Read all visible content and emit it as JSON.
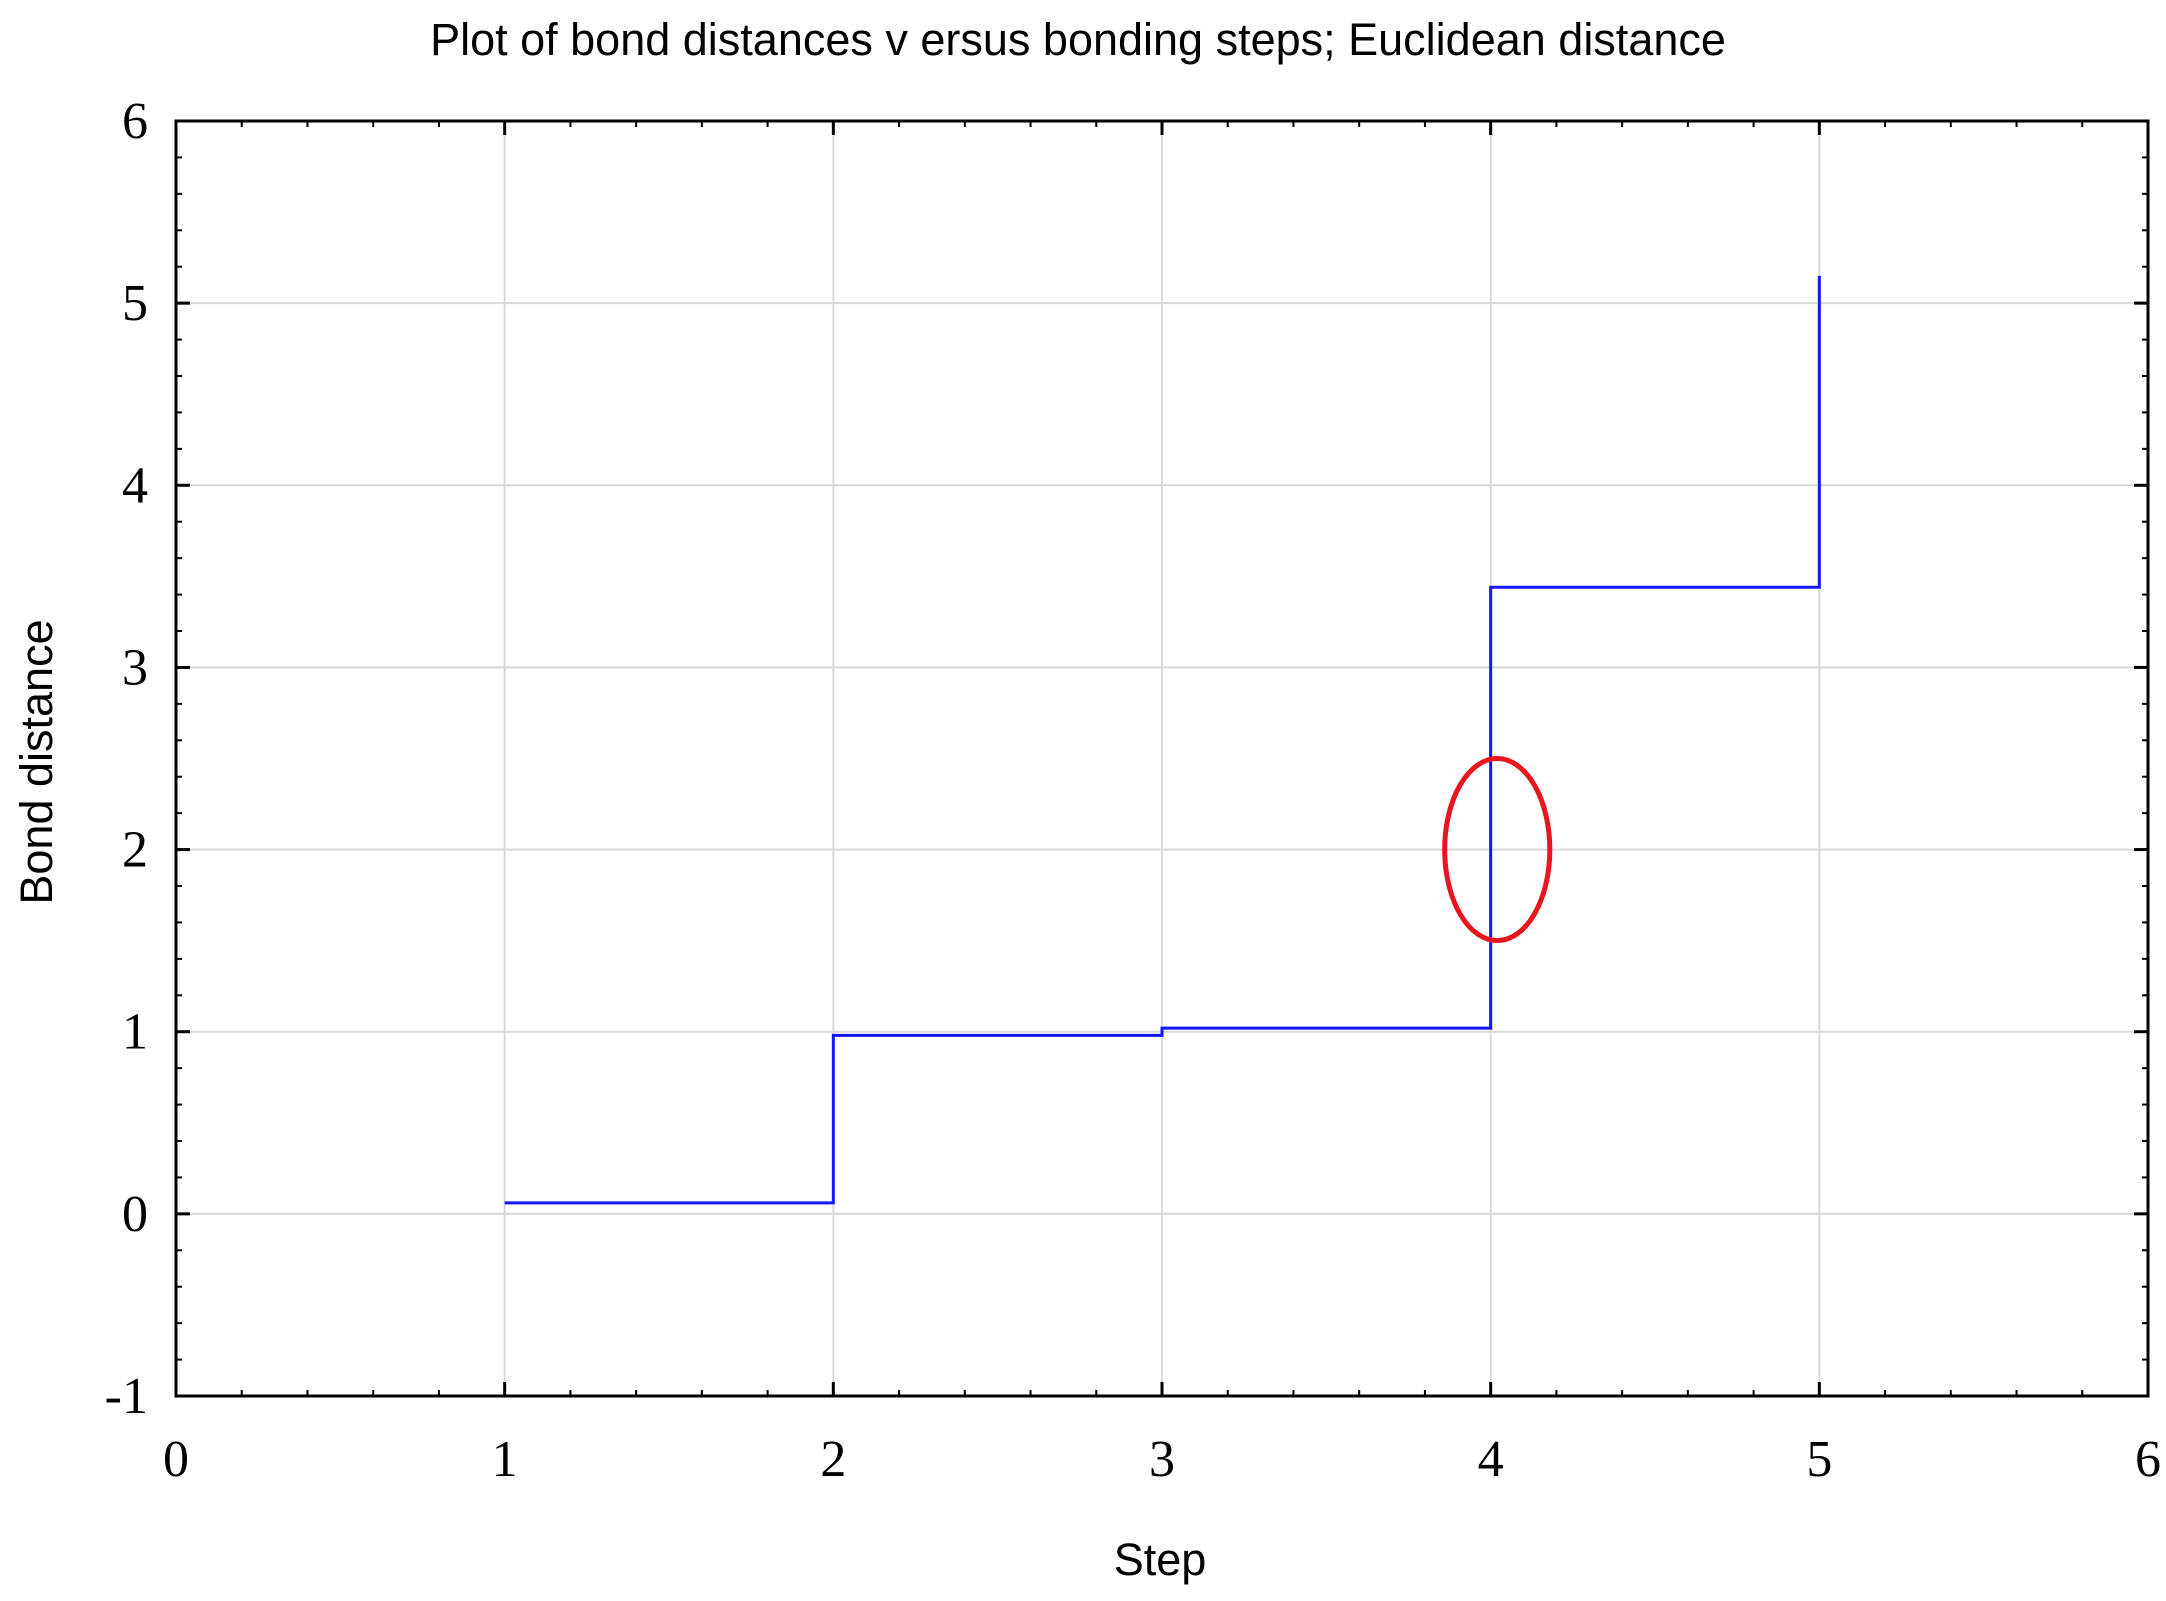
{
  "chart_data": {
    "type": "line",
    "title": "Plot of  bond distances v ersus bonding steps; Euclidean distance",
    "xlabel": "Step",
    "ylabel": "Bond distance",
    "xlim": [
      0,
      6
    ],
    "ylim": [
      -1,
      6
    ],
    "xticks": [
      0,
      1,
      2,
      3,
      4,
      5,
      6
    ],
    "yticks": [
      -1,
      0,
      1,
      2,
      3,
      4,
      5,
      6
    ],
    "xtick_labels": [
      "0",
      "1",
      "2",
      "3",
      "4",
      "5",
      "6"
    ],
    "ytick_labels": [
      "-1",
      "0",
      "1",
      "2",
      "3",
      "4",
      "5",
      "6"
    ],
    "grid": true,
    "series": [
      {
        "color": "#1414ff",
        "step": "post",
        "x": [
          1,
          2,
          3,
          4,
          5
        ],
        "y": [
          0.06,
          0.98,
          1.02,
          3.44,
          5.15
        ]
      }
    ],
    "annotations": [
      {
        "type": "ellipse",
        "color": "#e8141e",
        "center": [
          4.02,
          2.0
        ],
        "radius": [
          0.16,
          0.5
        ]
      }
    ]
  }
}
